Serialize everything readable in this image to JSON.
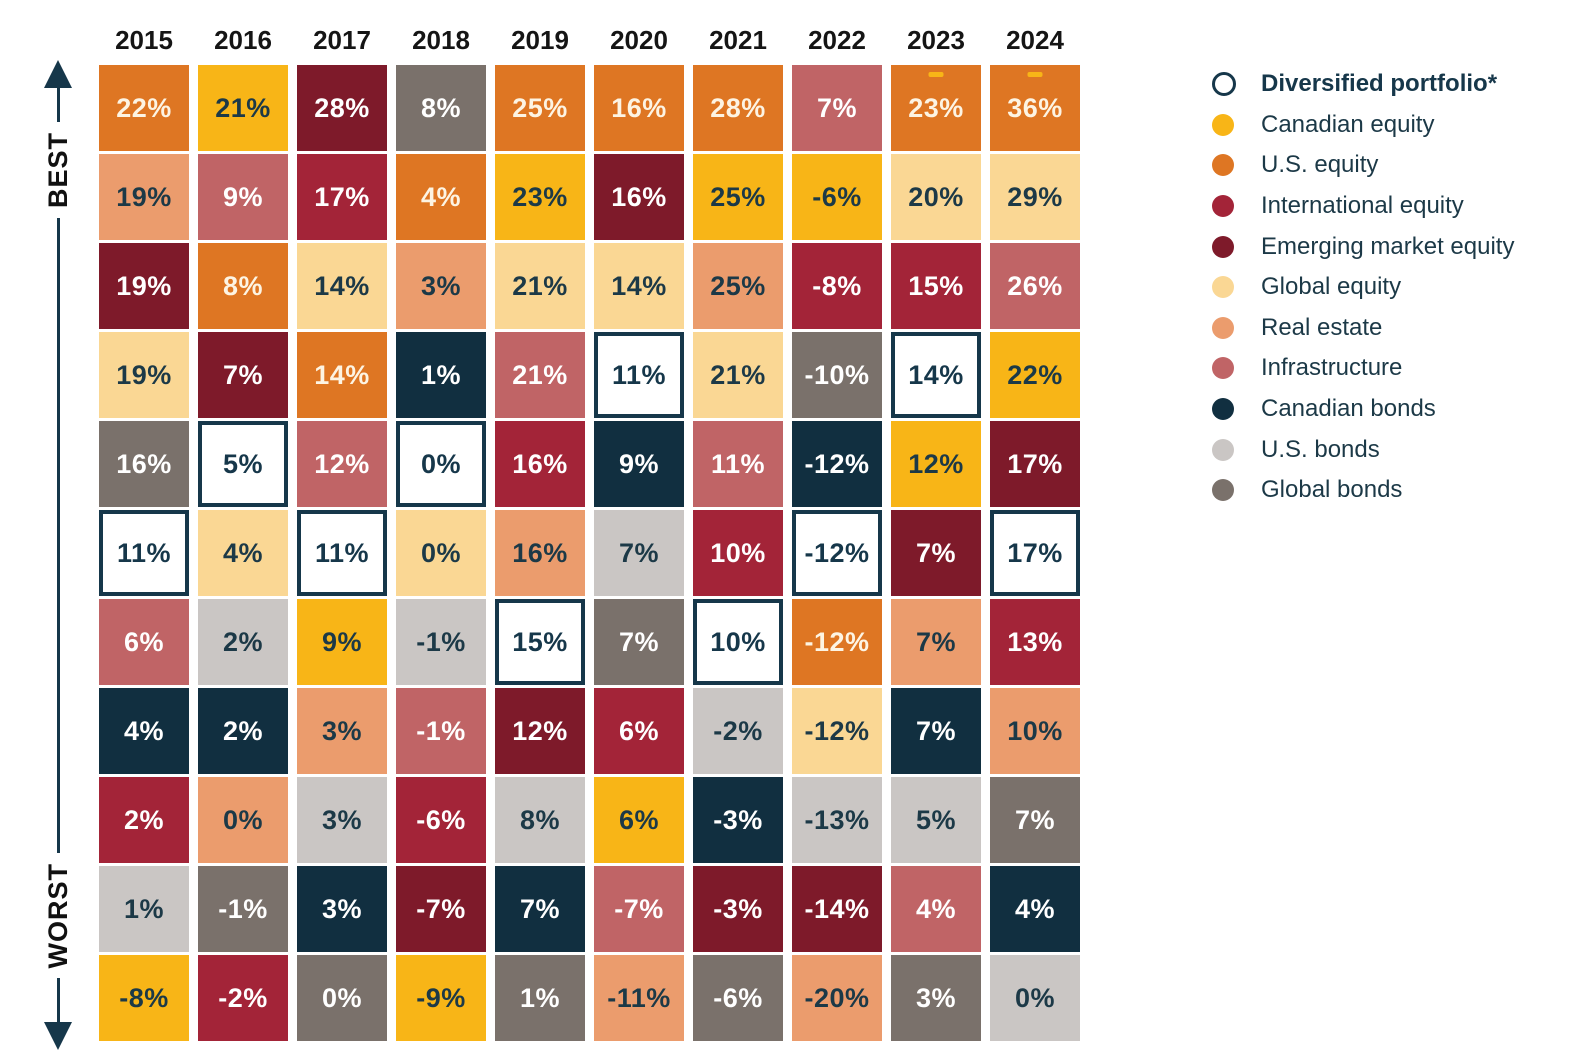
{
  "chart_data": {
    "type": "heatmap",
    "description": "Annual asset class returns ranked from best to worst, 2015-2024",
    "axis": {
      "best": "BEST",
      "worst": "WORST"
    },
    "years": [
      "2015",
      "2016",
      "2017",
      "2018",
      "2019",
      "2020",
      "2021",
      "2022",
      "2023",
      "2024"
    ],
    "legend": [
      {
        "id": "diversified",
        "label": "Diversified portfolio*",
        "swatch": "ring",
        "color": "#FFFFFF",
        "ring_color": "#16374A",
        "cell_text": "#16374A",
        "bold": true
      },
      {
        "id": "canadian_equity",
        "label": "Canadian equity",
        "swatch": "dot",
        "color": "#F8B517",
        "cell_text": "#1C3947"
      },
      {
        "id": "us_equity",
        "label": "U.S. equity",
        "swatch": "dot",
        "color": "#DE7623",
        "cell_text": "#FDF4E3"
      },
      {
        "id": "international_equity",
        "label": "International equity",
        "swatch": "dot",
        "color": "#A32438",
        "cell_text": "#FFFFFF"
      },
      {
        "id": "emerging_market_equity",
        "label": "Emerging market equity",
        "swatch": "dot",
        "color": "#7E1A2A",
        "cell_text": "#FFFFFF"
      },
      {
        "id": "global_equity",
        "label": "Global equity",
        "swatch": "dot",
        "color": "#FAD794",
        "cell_text": "#1C3947"
      },
      {
        "id": "real_estate",
        "label": "Real estate",
        "swatch": "dot",
        "color": "#EB9C6D",
        "cell_text": "#1C3947"
      },
      {
        "id": "infrastructure",
        "label": "Infrastructure",
        "swatch": "dot",
        "color": "#C06466",
        "cell_text": "#FFFFFF"
      },
      {
        "id": "canadian_bonds",
        "label": "Canadian bonds",
        "swatch": "dot",
        "color": "#112F40",
        "cell_text": "#FFFFFF"
      },
      {
        "id": "us_bonds",
        "label": "U.S. bonds",
        "swatch": "dot",
        "color": "#CAC6C4",
        "cell_text": "#1C3947"
      },
      {
        "id": "global_bonds",
        "label": "Global bonds",
        "swatch": "dot",
        "color": "#7A716B",
        "cell_text": "#FFFFFF"
      }
    ],
    "rows": [
      [
        {
          "v": "22%",
          "a": "us_equity"
        },
        {
          "v": "21%",
          "a": "canadian_equity"
        },
        {
          "v": "28%",
          "a": "emerging_market_equity"
        },
        {
          "v": "8%",
          "a": "global_bonds"
        },
        {
          "v": "25%",
          "a": "us_equity"
        },
        {
          "v": "16%",
          "a": "us_equity"
        },
        {
          "v": "28%",
          "a": "us_equity"
        },
        {
          "v": "7%",
          "a": "infrastructure"
        },
        {
          "v": "23%",
          "a": "us_equity",
          "m": true
        },
        {
          "v": "36%",
          "a": "us_equity",
          "m": true
        }
      ],
      [
        {
          "v": "19%",
          "a": "real_estate"
        },
        {
          "v": "9%",
          "a": "infrastructure"
        },
        {
          "v": "17%",
          "a": "international_equity"
        },
        {
          "v": "4%",
          "a": "us_equity"
        },
        {
          "v": "23%",
          "a": "canadian_equity"
        },
        {
          "v": "16%",
          "a": "emerging_market_equity"
        },
        {
          "v": "25%",
          "a": "canadian_equity"
        },
        {
          "v": "-6%",
          "a": "canadian_equity"
        },
        {
          "v": "20%",
          "a": "global_equity"
        },
        {
          "v": "29%",
          "a": "global_equity"
        }
      ],
      [
        {
          "v": "19%",
          "a": "emerging_market_equity"
        },
        {
          "v": "8%",
          "a": "us_equity"
        },
        {
          "v": "14%",
          "a": "global_equity"
        },
        {
          "v": "3%",
          "a": "real_estate"
        },
        {
          "v": "21%",
          "a": "global_equity"
        },
        {
          "v": "14%",
          "a": "global_equity"
        },
        {
          "v": "25%",
          "a": "real_estate"
        },
        {
          "v": "-8%",
          "a": "international_equity"
        },
        {
          "v": "15%",
          "a": "international_equity"
        },
        {
          "v": "26%",
          "a": "infrastructure"
        }
      ],
      [
        {
          "v": "19%",
          "a": "global_equity"
        },
        {
          "v": "7%",
          "a": "emerging_market_equity"
        },
        {
          "v": "14%",
          "a": "us_equity"
        },
        {
          "v": "1%",
          "a": "canadian_bonds"
        },
        {
          "v": "21%",
          "a": "infrastructure"
        },
        {
          "v": "11%",
          "a": "diversified"
        },
        {
          "v": "21%",
          "a": "global_equity"
        },
        {
          "v": "-10%",
          "a": "global_bonds"
        },
        {
          "v": "14%",
          "a": "diversified"
        },
        {
          "v": "22%",
          "a": "canadian_equity"
        }
      ],
      [
        {
          "v": "16%",
          "a": "global_bonds"
        },
        {
          "v": "5%",
          "a": "diversified"
        },
        {
          "v": "12%",
          "a": "infrastructure"
        },
        {
          "v": "0%",
          "a": "diversified"
        },
        {
          "v": "16%",
          "a": "international_equity"
        },
        {
          "v": "9%",
          "a": "canadian_bonds"
        },
        {
          "v": "11%",
          "a": "infrastructure"
        },
        {
          "v": "-12%",
          "a": "canadian_bonds"
        },
        {
          "v": "12%",
          "a": "canadian_equity"
        },
        {
          "v": "17%",
          "a": "emerging_market_equity"
        }
      ],
      [
        {
          "v": "11%",
          "a": "diversified"
        },
        {
          "v": "4%",
          "a": "global_equity"
        },
        {
          "v": "11%",
          "a": "diversified"
        },
        {
          "v": "0%",
          "a": "global_equity"
        },
        {
          "v": "16%",
          "a": "real_estate"
        },
        {
          "v": "7%",
          "a": "us_bonds"
        },
        {
          "v": "10%",
          "a": "international_equity"
        },
        {
          "v": "-12%",
          "a": "diversified"
        },
        {
          "v": "7%",
          "a": "emerging_market_equity"
        },
        {
          "v": "17%",
          "a": "diversified"
        }
      ],
      [
        {
          "v": "6%",
          "a": "infrastructure"
        },
        {
          "v": "2%",
          "a": "us_bonds"
        },
        {
          "v": "9%",
          "a": "canadian_equity"
        },
        {
          "v": "-1%",
          "a": "us_bonds"
        },
        {
          "v": "15%",
          "a": "diversified"
        },
        {
          "v": "7%",
          "a": "global_bonds"
        },
        {
          "v": "10%",
          "a": "diversified"
        },
        {
          "v": "-12%",
          "a": "us_equity"
        },
        {
          "v": "7%",
          "a": "real_estate"
        },
        {
          "v": "13%",
          "a": "international_equity"
        }
      ],
      [
        {
          "v": "4%",
          "a": "canadian_bonds"
        },
        {
          "v": "2%",
          "a": "canadian_bonds"
        },
        {
          "v": "3%",
          "a": "real_estate"
        },
        {
          "v": "-1%",
          "a": "infrastructure"
        },
        {
          "v": "12%",
          "a": "emerging_market_equity"
        },
        {
          "v": "6%",
          "a": "international_equity"
        },
        {
          "v": "-2%",
          "a": "us_bonds"
        },
        {
          "v": "-12%",
          "a": "global_equity"
        },
        {
          "v": "7%",
          "a": "canadian_bonds"
        },
        {
          "v": "10%",
          "a": "real_estate"
        }
      ],
      [
        {
          "v": "2%",
          "a": "international_equity"
        },
        {
          "v": "0%",
          "a": "real_estate"
        },
        {
          "v": "3%",
          "a": "us_bonds"
        },
        {
          "v": "-6%",
          "a": "international_equity"
        },
        {
          "v": "8%",
          "a": "us_bonds"
        },
        {
          "v": "6%",
          "a": "canadian_equity"
        },
        {
          "v": "-3%",
          "a": "canadian_bonds"
        },
        {
          "v": "-13%",
          "a": "us_bonds"
        },
        {
          "v": "5%",
          "a": "us_bonds"
        },
        {
          "v": "7%",
          "a": "global_bonds"
        }
      ],
      [
        {
          "v": "1%",
          "a": "us_bonds"
        },
        {
          "v": "-1%",
          "a": "global_bonds"
        },
        {
          "v": "3%",
          "a": "canadian_bonds"
        },
        {
          "v": "-7%",
          "a": "emerging_market_equity"
        },
        {
          "v": "7%",
          "a": "canadian_bonds"
        },
        {
          "v": "-7%",
          "a": "infrastructure"
        },
        {
          "v": "-3%",
          "a": "emerging_market_equity"
        },
        {
          "v": "-14%",
          "a": "emerging_market_equity"
        },
        {
          "v": "4%",
          "a": "infrastructure"
        },
        {
          "v": "4%",
          "a": "canadian_bonds"
        }
      ],
      [
        {
          "v": "-8%",
          "a": "canadian_equity"
        },
        {
          "v": "-2%",
          "a": "international_equity"
        },
        {
          "v": "0%",
          "a": "global_bonds"
        },
        {
          "v": "-9%",
          "a": "canadian_equity"
        },
        {
          "v": "1%",
          "a": "global_bonds"
        },
        {
          "v": "-11%",
          "a": "real_estate"
        },
        {
          "v": "-6%",
          "a": "global_bonds"
        },
        {
          "v": "-20%",
          "a": "real_estate"
        },
        {
          "v": "3%",
          "a": "global_bonds"
        },
        {
          "v": "0%",
          "a": "us_bonds"
        }
      ]
    ]
  }
}
